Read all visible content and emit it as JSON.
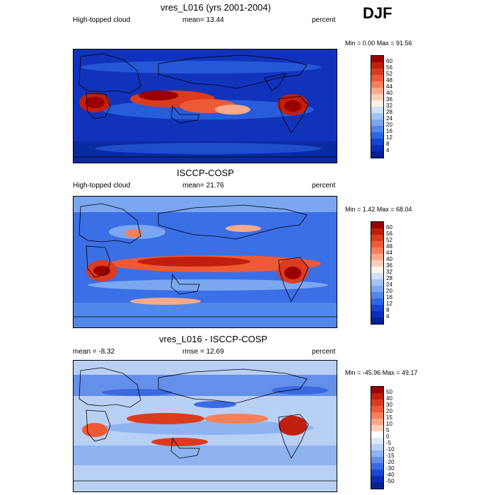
{
  "season": "DJF",
  "panels": [
    {
      "title": "vres_L016 (yrs 2001-2004)",
      "left_label": "High-topped cloud",
      "center_label": "mean=  13.44",
      "right_label": "percent",
      "minmax": "Min =   0.00 Max =  91.56",
      "colorbar_labels": [
        "60",
        "56",
        "52",
        "48",
        "44",
        "40",
        "36",
        "32",
        "28",
        "24",
        "20",
        "16",
        "12",
        "8",
        "4"
      ],
      "colorbar_colors": [
        "#9b0000",
        "#c11f0d",
        "#dc3b1e",
        "#ee5a35",
        "#f5805a",
        "#f9a98a",
        "#fbd0bb",
        "#fdf2ea",
        "#cfe1f8",
        "#a3c4f3",
        "#7aa7ef",
        "#5288ea",
        "#2d67e2",
        "#1446d3",
        "#0b2dbb",
        "#062099"
      ],
      "background_color": "#1133bb"
    },
    {
      "title": "ISCCP-COSP",
      "left_label": "High-topped cloud",
      "center_label": "mean=  21.76",
      "right_label": "percent",
      "minmax": "Min =   1.42 Max =  68.04",
      "colorbar_labels": [
        "60",
        "56",
        "52",
        "48",
        "44",
        "40",
        "36",
        "32",
        "28",
        "24",
        "20",
        "16",
        "12",
        "8",
        "4"
      ],
      "colorbar_colors": [
        "#9b0000",
        "#c11f0d",
        "#dc3b1e",
        "#ee5a35",
        "#f5805a",
        "#f9a98a",
        "#fbd0bb",
        "#fdf2ea",
        "#cfe1f8",
        "#a3c4f3",
        "#7aa7ef",
        "#5288ea",
        "#2d67e2",
        "#1446d3",
        "#0b2dbb",
        "#062099"
      ],
      "background_color": "#3b6fe6"
    },
    {
      "title": "vres_L016 - ISCCP-COSP",
      "left_label": "mean =  -8.32",
      "center_label": "rmse =  12.69",
      "right_label": "percent",
      "minmax": "Min = -45.96 Max =  49.17",
      "colorbar_labels": [
        "50",
        "40",
        "30",
        "20",
        "15",
        "10",
        "5",
        "0",
        "-5",
        "-10",
        "-15",
        "-20",
        "-30",
        "-40",
        "-50"
      ],
      "colorbar_colors": [
        "#9b0000",
        "#c11f0d",
        "#dc3b1e",
        "#ee5a35",
        "#f5805a",
        "#f9a98a",
        "#fbd0bb",
        "#ffffff",
        "#dce8fa",
        "#b9d0f5",
        "#8fb3f0",
        "#648fea",
        "#3a6ae2",
        "#1a47cf",
        "#0b2db5",
        "#06208f"
      ],
      "background_color": "#8fb3f0"
    }
  ]
}
